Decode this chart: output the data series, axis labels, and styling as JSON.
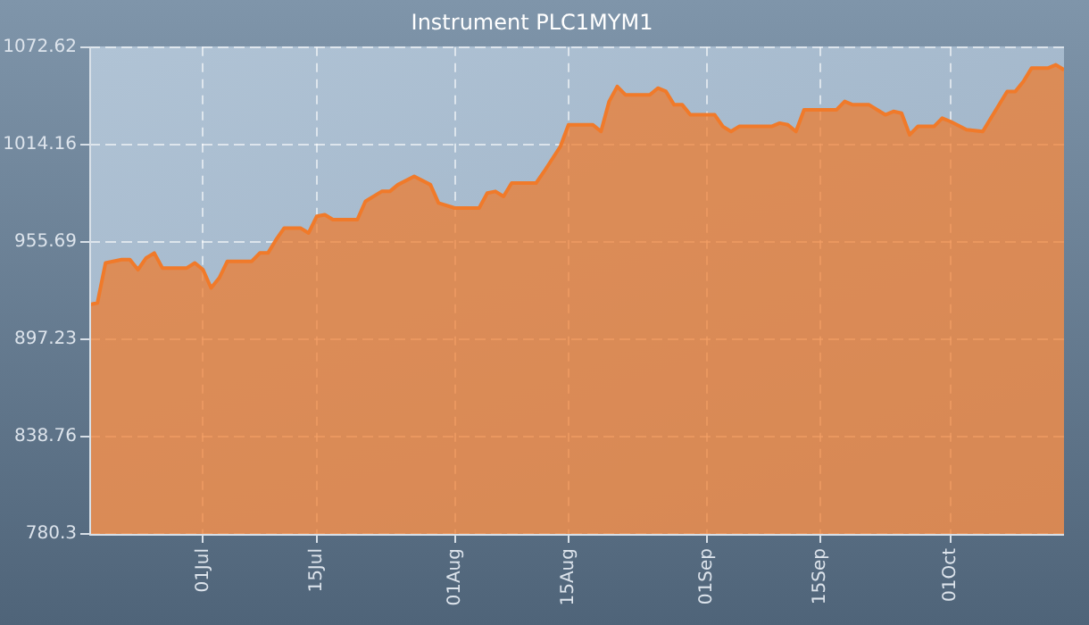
{
  "chart_data": {
    "type": "area",
    "title": "Instrument PLC1MYM1",
    "color": "#f07a2a",
    "grid": true,
    "legend": false,
    "marker": "none",
    "line_style": "solid",
    "x": [
      "--06-17",
      "--06-18",
      "--06-19",
      "--06-21",
      "--06-22",
      "--06-23",
      "--06-24",
      "--06-25",
      "--06-26",
      "--06-29",
      "--06-30",
      "--07-01",
      "--07-02",
      "--07-03",
      "--07-04",
      "--07-07",
      "--07-08",
      "--07-09",
      "--07-10",
      "--07-11",
      "--07-13",
      "--07-14",
      "--07-15",
      "--07-16",
      "--07-17",
      "--07-20",
      "--07-21",
      "--07-23",
      "--07-24",
      "--07-25",
      "--07-27",
      "--07-29",
      "--07-30",
      "--08-01",
      "--08-04",
      "--08-05",
      "--08-06",
      "--08-07",
      "--08-08",
      "--08-11",
      "--08-12",
      "--08-14",
      "--08-15",
      "--08-18",
      "--08-19",
      "--08-20",
      "--08-21",
      "--08-22",
      "--08-25",
      "--08-26",
      "--08-27",
      "--08-28",
      "--08-29",
      "--08-30",
      "--09-02",
      "--09-03",
      "--09-04",
      "--09-05",
      "--09-09",
      "--09-10",
      "--09-11",
      "--09-12",
      "--09-13",
      "--09-17",
      "--09-18",
      "--09-19",
      "--09-21",
      "--09-23",
      "--09-24",
      "--09-25",
      "--09-26",
      "--09-27",
      "--09-29",
      "--09-30",
      "--10-01",
      "--10-03",
      "--10-05",
      "--10-06",
      "--10-08",
      "--10-09",
      "--10-10",
      "--10-11",
      "--10-13",
      "--10-14",
      "--10-15"
    ],
    "values": [
      918,
      919,
      943,
      945,
      945,
      939,
      946,
      949,
      940,
      940,
      943,
      939,
      928,
      934,
      944,
      944,
      949,
      949,
      957,
      964,
      964,
      961,
      971,
      972,
      969,
      969,
      980,
      986,
      986,
      990,
      995,
      990,
      979,
      976,
      976,
      985,
      986,
      983,
      991,
      991,
      998,
      1013,
      1026,
      1026,
      1022,
      1040,
      1049,
      1044,
      1044,
      1048,
      1046,
      1038,
      1038,
      1032,
      1032,
      1025,
      1022,
      1025,
      1025,
      1027,
      1026,
      1022,
      1035,
      1035,
      1040,
      1038,
      1038,
      1032,
      1034,
      1033,
      1020,
      1025,
      1025,
      1030,
      1028,
      1023,
      1022,
      1030,
      1046,
      1046,
      1052,
      1060,
      1060,
      1062,
      1059
    ],
    "xlim": [
      "--06-17",
      "--10-15"
    ],
    "xticks": [
      {
        "value": "--07-01",
        "label": "01Jul"
      },
      {
        "value": "--07-15",
        "label": "15Jul"
      },
      {
        "value": "--08-01",
        "label": "01Aug"
      },
      {
        "value": "--08-15",
        "label": "15Aug"
      },
      {
        "value": "--09-01",
        "label": "01Sep"
      },
      {
        "value": "--09-15",
        "label": "15Sep"
      },
      {
        "value": "--10-01",
        "label": "01Oct"
      }
    ],
    "ylim": [
      780.3,
      1072.62
    ],
    "yticks": [
      780.3,
      838.76,
      897.23,
      955.69,
      1014.16,
      1072.62
    ]
  }
}
